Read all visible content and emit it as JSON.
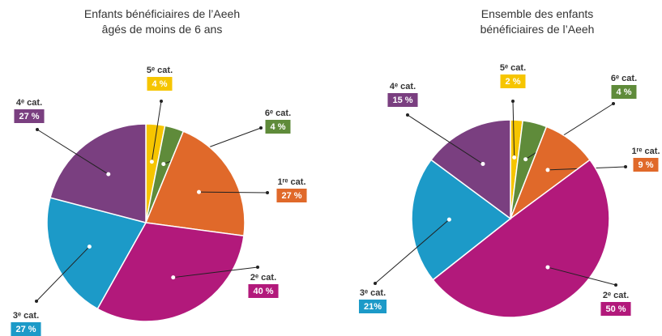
{
  "chart_data": [
    {
      "type": "pie",
      "title": [
        "Enfants bénéficiaires de l’Aeeh",
        "âgés de moins de 6 ans"
      ],
      "categories": [
        "5ᵉ cat.",
        "6ᵉ cat.",
        "1ʳᵉ cat.",
        "2ᵉ cat.",
        "3ᵉ cat.",
        "4ᵉ cat."
      ],
      "values": [
        4,
        4,
        27,
        40,
        27,
        27
      ],
      "value_labels": [
        "4 %",
        "4 %",
        "27 %",
        "40 %",
        "27 %",
        "27 %"
      ],
      "colors": [
        "#f6c500",
        "#5f8b3a",
        "#e0692a",
        "#b2197b",
        "#1c9ac8",
        "#7a3f80"
      ]
    },
    {
      "type": "pie",
      "title": [
        "Ensemble des enfants",
        "bénéficiaires de l’Aeeh"
      ],
      "categories": [
        "5ᵉ cat.",
        "6ᵉ cat.",
        "1ʳᵉ cat.",
        "2ᵉ cat.",
        "3ᵉ cat.",
        "4ᵉ cat."
      ],
      "values": [
        2,
        4,
        9,
        50,
        21,
        15
      ],
      "value_labels": [
        "2 %",
        "4 %",
        "9 %",
        "50 %",
        "21%",
        "15 %"
      ],
      "colors": [
        "#f6c500",
        "#5f8b3a",
        "#e0692a",
        "#b2197b",
        "#1c9ac8",
        "#7a3f80"
      ]
    }
  ]
}
